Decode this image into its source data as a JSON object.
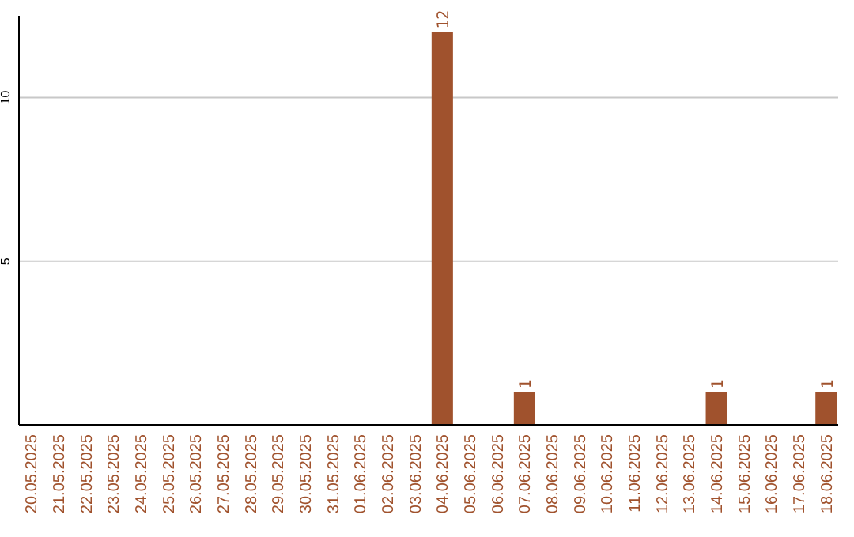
{
  "chart_data": {
    "type": "bar",
    "categories": [
      "20.05.2025",
      "21.05.2025",
      "22.05.2025",
      "23.05.2025",
      "24.05.2025",
      "25.05.2025",
      "26.05.2025",
      "27.05.2025",
      "28.05.2025",
      "29.05.2025",
      "30.05.2025",
      "31.05.2025",
      "01.06.2025",
      "02.06.2025",
      "03.06.2025",
      "04.06.2025",
      "05.06.2025",
      "06.06.2025",
      "07.06.2025",
      "08.06.2025",
      "09.06.2025",
      "10.06.2025",
      "11.06.2025",
      "12.06.2025",
      "13.06.2025",
      "14.06.2025",
      "15.06.2025",
      "16.06.2025",
      "17.06.2025",
      "18.06.2025"
    ],
    "values": [
      0,
      0,
      0,
      0,
      0,
      0,
      0,
      0,
      0,
      0,
      0,
      0,
      0,
      0,
      0,
      12,
      0,
      0,
      1,
      0,
      0,
      0,
      0,
      0,
      0,
      1,
      0,
      0,
      0,
      1
    ],
    "value_labels": [
      null,
      null,
      null,
      null,
      null,
      null,
      null,
      null,
      null,
      null,
      null,
      null,
      null,
      null,
      null,
      "12",
      null,
      null,
      "1",
      null,
      null,
      null,
      null,
      null,
      null,
      "1",
      null,
      null,
      null,
      "1"
    ],
    "color": "#a0522d",
    "ylim": [
      0,
      12.5
    ],
    "yticks": [
      5,
      10
    ],
    "grid": "y"
  }
}
